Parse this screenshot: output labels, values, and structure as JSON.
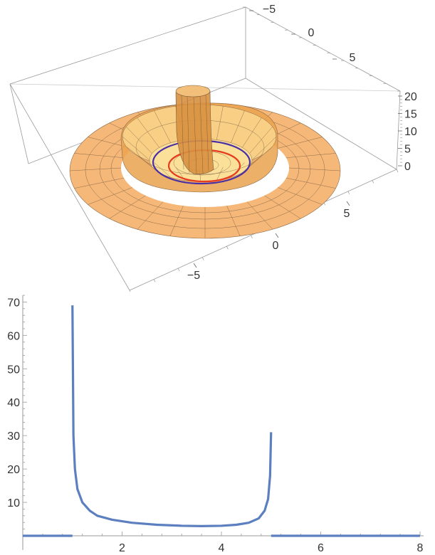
{
  "chart_data": [
    {
      "type": "surface3d",
      "x_ticks": [
        "−5",
        "0",
        "5"
      ],
      "y_ticks": [
        "−5",
        "0",
        "5"
      ],
      "z_ticks": [
        "0",
        "5",
        "10",
        "15",
        "20"
      ],
      "xlim": [
        -8,
        8
      ],
      "ylim": [
        -8,
        8
      ],
      "zlim": [
        0,
        20
      ],
      "surface_color": "#f6b56b",
      "inner_ring_color": "#e63b1c",
      "outer_ring_color": "#4b2fa5"
    },
    {
      "type": "line",
      "x_ticks": [
        "2",
        "4",
        "6",
        "8"
      ],
      "y_ticks": [
        "10",
        "20",
        "30",
        "40",
        "50",
        "60",
        "70"
      ],
      "xlim": [
        0,
        8
      ],
      "ylim": [
        0,
        72
      ],
      "color": "#5b7fbf",
      "segments": [
        {
          "x": [
            0,
            1
          ],
          "y": [
            0,
            0
          ]
        },
        {
          "x": [
            1,
            1.02,
            1.05,
            1.1,
            1.2,
            1.35,
            1.5,
            1.8,
            2.2,
            2.7,
            3.2,
            3.6,
            4.0,
            4.3,
            4.55,
            4.75,
            4.87,
            4.94,
            4.98,
            5.0
          ],
          "y": [
            69,
            30,
            20,
            14,
            10,
            7.5,
            6,
            4.8,
            3.9,
            3.3,
            3.0,
            2.9,
            3.0,
            3.3,
            3.9,
            5.2,
            7.5,
            11,
            18,
            31
          ]
        },
        {
          "x": [
            5,
            8
          ],
          "y": [
            0,
            0
          ]
        }
      ]
    }
  ]
}
